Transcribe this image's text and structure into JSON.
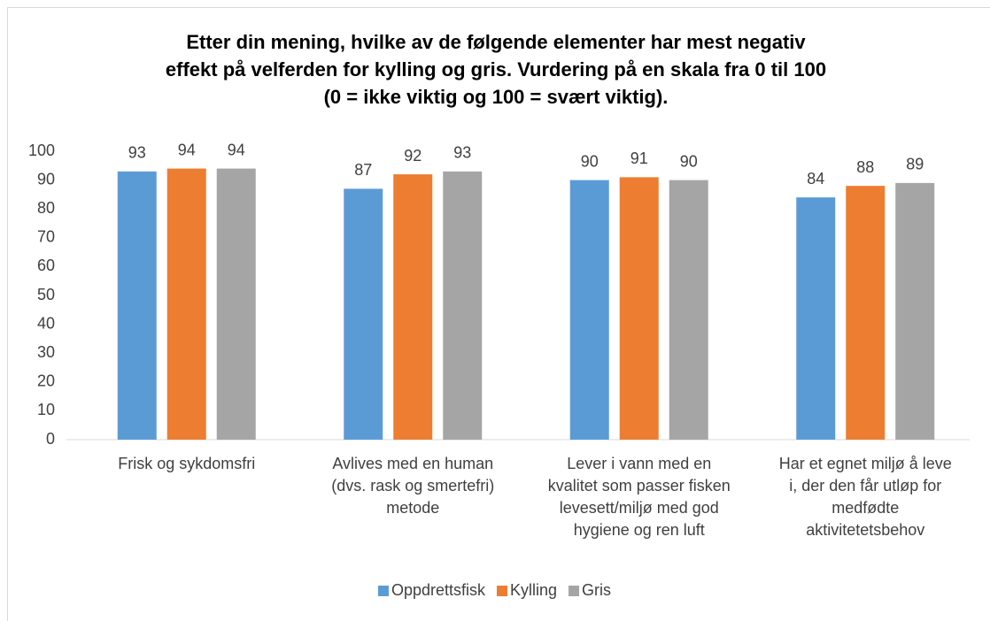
{
  "chart_data": {
    "type": "bar",
    "title": "Etter din mening, hvilke av de følgende elementer har mest negativ\neffekt på velferden for kylling og gris. Vurdering på en skala fra 0 til 100\n(0 = ikke viktig og 100 = svært viktig).",
    "categories": [
      "Frisk og sykdomsfri",
      "Avlives med en human\n(dvs. rask og smertefri)\nmetode",
      "Lever i vann med en\nkvalitet som passer fisken\nlevesett/miljø med god\nhygiene og ren luft",
      "Har et egnet miljø å leve\ni, der den får utløp for\nmedfødte\naktivitetetsbehov"
    ],
    "series": [
      {
        "name": "Oppdrettsfisk",
        "color": "#5b9bd5",
        "values": [
          93,
          87,
          90,
          84
        ]
      },
      {
        "name": "Kylling",
        "color": "#ed7d31",
        "values": [
          94,
          92,
          91,
          88
        ]
      },
      {
        "name": "Gris",
        "color": "#a5a5a5",
        "values": [
          94,
          93,
          90,
          89
        ]
      }
    ],
    "ylim": [
      0,
      100
    ],
    "yticks": [
      0,
      10,
      20,
      30,
      40,
      50,
      60,
      70,
      80,
      90,
      100
    ],
    "grid": false,
    "legend": "bottom"
  }
}
